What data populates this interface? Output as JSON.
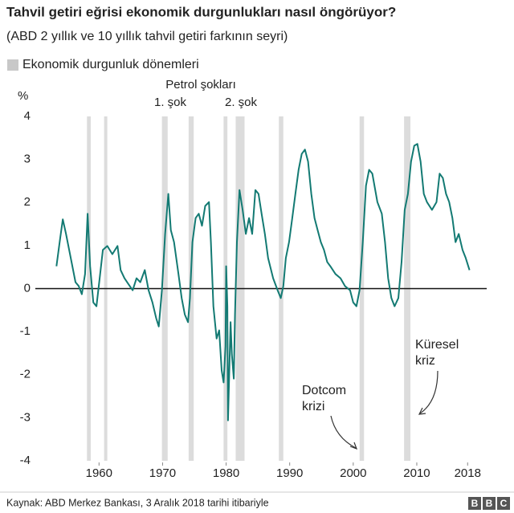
{
  "chart_data": {
    "type": "line",
    "title": "Tahvil getiri eğrisi ekonomik durgunlukları nasıl öngörüyor?",
    "subtitle": "(ABD 2 yıllık ve 10 yıllık tahvil getiri farkının seyri)",
    "legend_label": "Ekonomik durgunluk dönemleri",
    "shade_color": "#dcdcdc",
    "shaded_periods": [
      [
        1958.1,
        1958.7
      ],
      [
        1960.8,
        1961.3
      ],
      [
        1969.9,
        1970.8
      ],
      [
        1974.1,
        1974.9
      ],
      [
        1979.6,
        1980.2
      ],
      [
        1981.5,
        1982.9
      ],
      [
        1988.3,
        1989.0
      ],
      [
        2001.0,
        2001.7
      ],
      [
        2008.0,
        2009.0
      ]
    ],
    "y_label": "%",
    "annotations": {
      "oil": "Petrol şokları",
      "shock1": "1. şok",
      "shock2": "2. şok",
      "dotcom": [
        "Dotcom",
        "krizi"
      ],
      "global": [
        "Küresel",
        "kriz"
      ]
    },
    "source": "Kaynak: ABD Merkez Bankası, 3 Aralık 2018 tarihi itibariyle",
    "logo": [
      "B",
      "B",
      "C"
    ],
    "xlim": [
      1952,
      2021
    ],
    "ylim": [
      -4,
      4
    ],
    "xticks": [
      1960,
      1970,
      1980,
      1990,
      2000,
      2010,
      2018
    ],
    "yticks": [
      -4,
      -3,
      -2,
      -1,
      0,
      1,
      2,
      3,
      4
    ],
    "x": [
      1953.3,
      1953.9,
      1954.3,
      1954.8,
      1955.3,
      1955.8,
      1956.3,
      1956.8,
      1957.3,
      1957.8,
      1958.2,
      1958.6,
      1959.1,
      1959.6,
      1960.1,
      1960.6,
      1961.3,
      1962.1,
      1962.9,
      1963.4,
      1964.0,
      1964.6,
      1965.3,
      1965.9,
      1966.5,
      1967.2,
      1967.8,
      1968.4,
      1969.0,
      1969.4,
      1969.9,
      1970.4,
      1970.9,
      1971.3,
      1971.8,
      1972.5,
      1973.0,
      1973.5,
      1974.0,
      1974.3,
      1974.7,
      1975.2,
      1975.7,
      1976.2,
      1976.7,
      1977.3,
      1977.6,
      1978.0,
      1978.5,
      1978.9,
      1979.3,
      1979.6,
      1979.9,
      1980.0,
      1980.2,
      1980.3,
      1980.7,
      1980.9,
      1981.2,
      1981.4,
      1981.7,
      1982.1,
      1982.6,
      1983.1,
      1983.6,
      1984.1,
      1984.6,
      1985.1,
      1985.6,
      1986.1,
      1986.6,
      1987.4,
      1988.1,
      1988.6,
      1989.0,
      1989.4,
      1989.9,
      1990.4,
      1990.9,
      1991.4,
      1991.9,
      1992.4,
      1992.9,
      1993.4,
      1993.9,
      1994.4,
      1994.9,
      1995.4,
      1995.9,
      1996.4,
      1997.2,
      1998.0,
      1998.7,
      1999.5,
      2000.0,
      2000.5,
      2001.0,
      2001.5,
      2002.0,
      2002.5,
      2003.0,
      2003.8,
      2004.5,
      2005.0,
      2005.5,
      2006.0,
      2006.5,
      2007.1,
      2007.6,
      2008.1,
      2008.6,
      2009.1,
      2009.6,
      2010.1,
      2010.6,
      2011.1,
      2011.6,
      2012.4,
      2013.1,
      2013.6,
      2014.1,
      2014.6,
      2015.1,
      2015.6,
      2016.1,
      2016.6,
      2017.2,
      2017.7,
      2018.3
    ],
    "series": [
      {
        "color": "#137a73",
        "values": [
          0.52,
          1.18,
          1.61,
          1.27,
          0.9,
          0.52,
          0.15,
          0.06,
          -0.13,
          0.34,
          1.74,
          0.52,
          -0.32,
          -0.41,
          0.24,
          0.9,
          0.99,
          0.8,
          0.99,
          0.43,
          0.24,
          0.11,
          -0.04,
          0.24,
          0.15,
          0.43,
          -0.04,
          -0.32,
          -0.69,
          -0.88,
          -0.04,
          1.27,
          2.2,
          1.36,
          1.08,
          0.34,
          -0.22,
          -0.6,
          -0.78,
          -0.22,
          1.08,
          1.64,
          1.74,
          1.46,
          1.92,
          2.01,
          1.08,
          -0.41,
          -1.16,
          -0.97,
          -1.9,
          -2.18,
          -1.34,
          0.52,
          -0.41,
          -3.06,
          -0.78,
          -1.53,
          -2.09,
          -0.6,
          1.08,
          2.29,
          1.83,
          1.27,
          1.64,
          1.27,
          2.29,
          2.2,
          1.72,
          1.27,
          0.71,
          0.24,
          -0.04,
          -0.22,
          0.06,
          0.71,
          1.08,
          1.64,
          2.2,
          2.76,
          3.13,
          3.23,
          2.95,
          2.2,
          1.64,
          1.36,
          1.08,
          0.9,
          0.62,
          0.52,
          0.34,
          0.24,
          0.06,
          -0.04,
          -0.32,
          -0.41,
          -0.04,
          1.08,
          2.39,
          2.76,
          2.67,
          2.01,
          1.74,
          1.08,
          0.24,
          -0.22,
          -0.41,
          -0.22,
          0.62,
          1.83,
          2.2,
          2.95,
          3.32,
          3.36,
          2.95,
          2.2,
          2.01,
          1.83,
          2.01,
          2.67,
          2.57,
          2.2,
          2.01,
          1.64,
          1.08,
          1.27,
          0.9,
          0.71,
          0.43
        ]
      }
    ]
  }
}
